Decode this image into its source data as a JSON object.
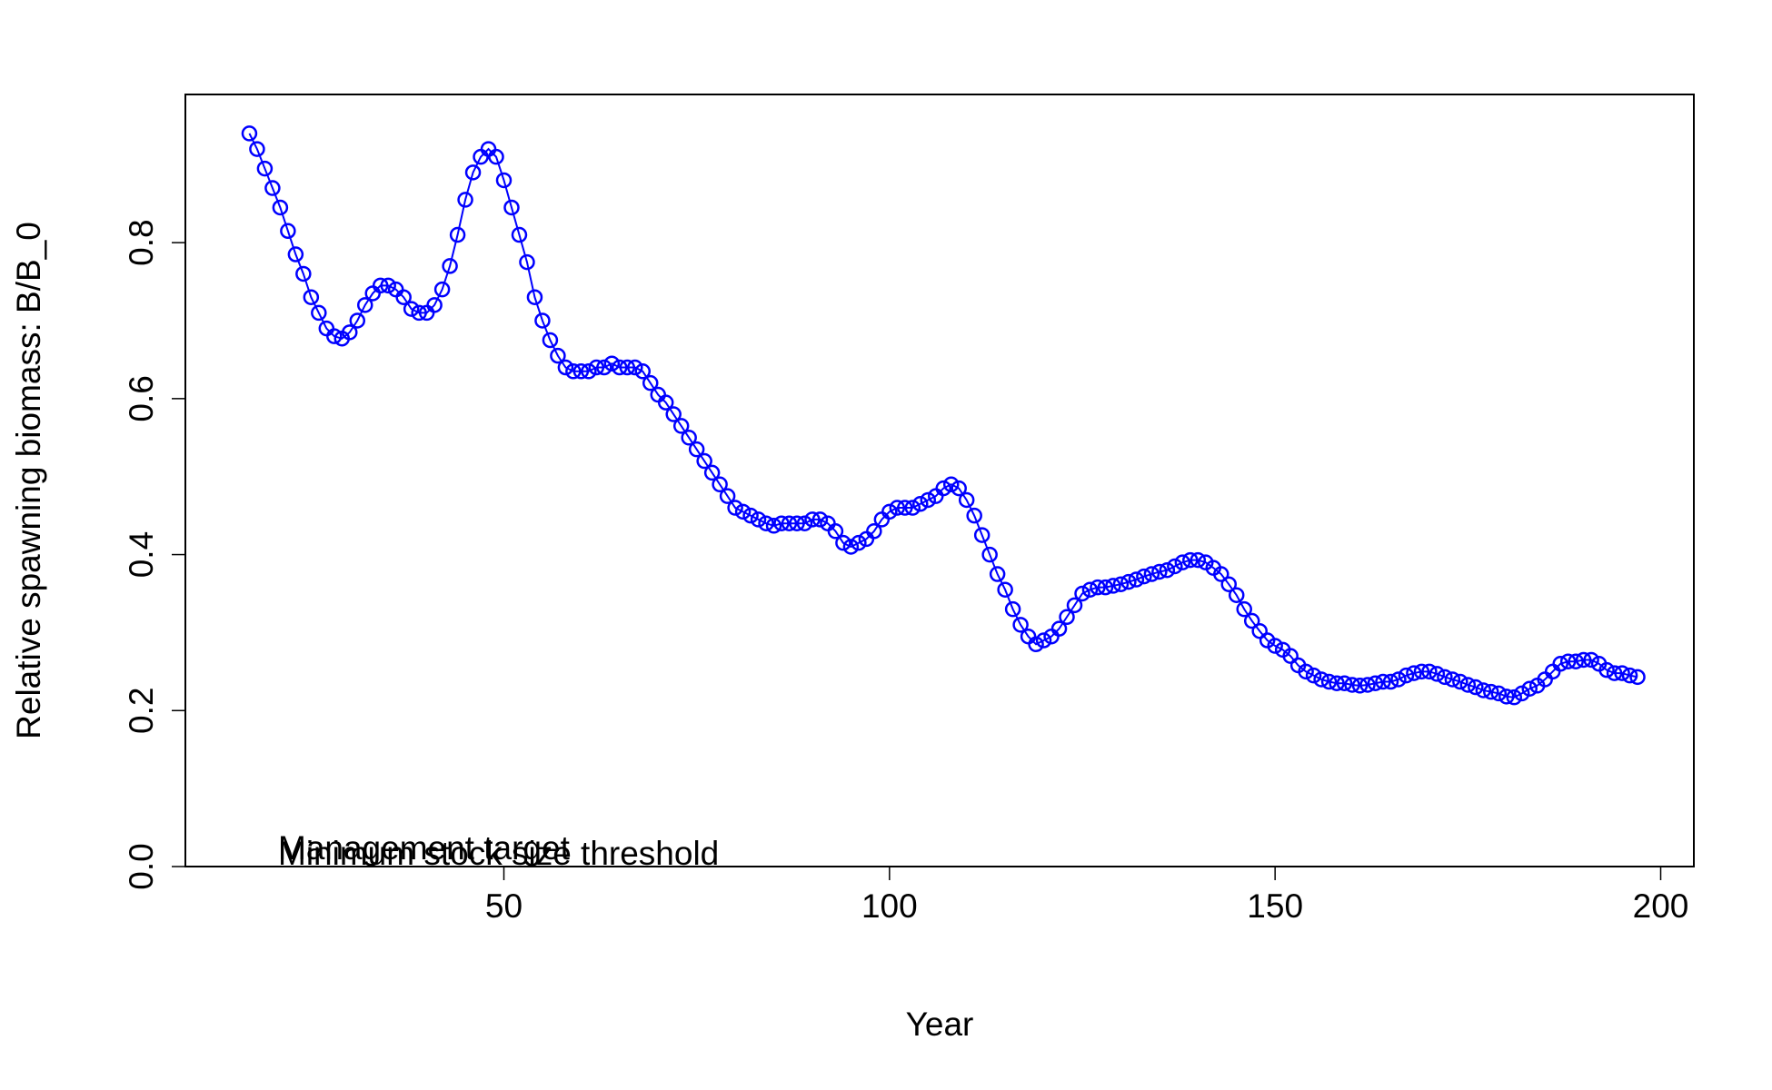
{
  "chart_data": {
    "type": "line",
    "xlabel": "Year",
    "ylabel": "Relative spawning biomass: B/B_0",
    "x": [
      17,
      18,
      19,
      20,
      21,
      22,
      23,
      24,
      25,
      26,
      27,
      28,
      29,
      30,
      31,
      32,
      33,
      34,
      35,
      36,
      37,
      38,
      39,
      40,
      41,
      42,
      43,
      44,
      45,
      46,
      47,
      48,
      49,
      50,
      51,
      52,
      53,
      54,
      55,
      56,
      57,
      58,
      59,
      60,
      61,
      62,
      63,
      64,
      65,
      66,
      67,
      68,
      69,
      70,
      71,
      72,
      73,
      74,
      75,
      76,
      77,
      78,
      79,
      80,
      81,
      82,
      83,
      84,
      85,
      86,
      87,
      88,
      89,
      90,
      91,
      92,
      93,
      94,
      95,
      96,
      97,
      98,
      99,
      100,
      101,
      102,
      103,
      104,
      105,
      106,
      107,
      108,
      109,
      110,
      111,
      112,
      113,
      114,
      115,
      116,
      117,
      118,
      119,
      120,
      121,
      122,
      123,
      124,
      125,
      126,
      127,
      128,
      129,
      130,
      131,
      132,
      133,
      134,
      135,
      136,
      137,
      138,
      139,
      140,
      141,
      142,
      143,
      144,
      145,
      146,
      147,
      148,
      149,
      150,
      151,
      152,
      153,
      154,
      155,
      156,
      157,
      158,
      159,
      160,
      161,
      162,
      163,
      164,
      165,
      166,
      167,
      168,
      169,
      170,
      171,
      172,
      173,
      174,
      175,
      176,
      177,
      178,
      179,
      180,
      181,
      182,
      183,
      184,
      185,
      186,
      187,
      188,
      189,
      190,
      191,
      192,
      193,
      194,
      195,
      196,
      197
    ],
    "series": [
      {
        "name": "B/B_0",
        "color": "#0000ff",
        "values": [
          0.94,
          0.92,
          0.895,
          0.87,
          0.845,
          0.815,
          0.785,
          0.76,
          0.73,
          0.71,
          0.69,
          0.68,
          0.677,
          0.685,
          0.7,
          0.72,
          0.735,
          0.745,
          0.745,
          0.74,
          0.73,
          0.715,
          0.71,
          0.71,
          0.72,
          0.74,
          0.77,
          0.81,
          0.855,
          0.89,
          0.91,
          0.92,
          0.91,
          0.88,
          0.845,
          0.81,
          0.775,
          0.73,
          0.7,
          0.675,
          0.655,
          0.64,
          0.635,
          0.635,
          0.635,
          0.64,
          0.64,
          0.645,
          0.64,
          0.64,
          0.64,
          0.635,
          0.62,
          0.605,
          0.595,
          0.58,
          0.565,
          0.55,
          0.535,
          0.52,
          0.505,
          0.49,
          0.475,
          0.46,
          0.455,
          0.45,
          0.445,
          0.44,
          0.437,
          0.44,
          0.44,
          0.44,
          0.44,
          0.445,
          0.445,
          0.44,
          0.43,
          0.415,
          0.41,
          0.415,
          0.42,
          0.43,
          0.445,
          0.455,
          0.46,
          0.46,
          0.46,
          0.465,
          0.47,
          0.475,
          0.485,
          0.49,
          0.485,
          0.47,
          0.45,
          0.425,
          0.4,
          0.375,
          0.355,
          0.33,
          0.31,
          0.295,
          0.285,
          0.29,
          0.295,
          0.305,
          0.32,
          0.335,
          0.35,
          0.355,
          0.358,
          0.358,
          0.36,
          0.362,
          0.365,
          0.368,
          0.372,
          0.375,
          0.378,
          0.38,
          0.385,
          0.39,
          0.393,
          0.393,
          0.39,
          0.383,
          0.375,
          0.362,
          0.348,
          0.33,
          0.315,
          0.302,
          0.29,
          0.283,
          0.278,
          0.27,
          0.258,
          0.25,
          0.245,
          0.24,
          0.237,
          0.235,
          0.235,
          0.233,
          0.232,
          0.233,
          0.235,
          0.237,
          0.237,
          0.24,
          0.245,
          0.248,
          0.25,
          0.25,
          0.247,
          0.243,
          0.24,
          0.237,
          0.233,
          0.23,
          0.226,
          0.224,
          0.222,
          0.218,
          0.217,
          0.222,
          0.228,
          0.232,
          0.24,
          0.25,
          0.26,
          0.263,
          0.263,
          0.265,
          0.265,
          0.26,
          0.252,
          0.248,
          0.248,
          0.245,
          0.243
        ]
      }
    ],
    "hlines": [
      {
        "value": 0,
        "label": "Management target",
        "color": "#ff0000"
      },
      {
        "value": 0,
        "label": "Minimum stock size threshold",
        "color": "#ff0000"
      }
    ],
    "xlim": [
      8.7,
      204.3
    ],
    "ylim": [
      0,
      0.99
    ],
    "xticks": [
      50,
      100,
      150,
      200
    ],
    "yticks": [
      {
        "value": 0,
        "label": "0.0"
      },
      0.2,
      0.4,
      0.6,
      0.8
    ]
  }
}
